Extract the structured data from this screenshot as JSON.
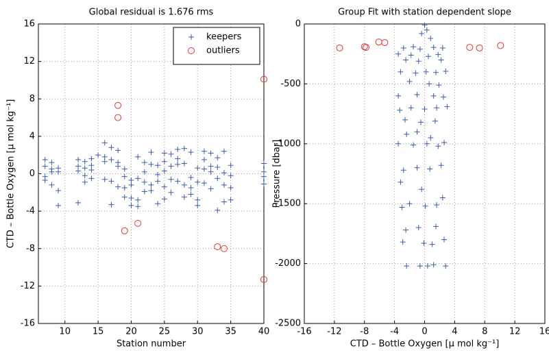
{
  "chart_data": [
    {
      "type": "scatter",
      "title": "Global residual is 1.676 rms",
      "x_label": "Station number",
      "y_label": "CTD – Bottle Oxygen [μ mol kg⁻¹]",
      "xlim": [
        6,
        40
      ],
      "xticks": [
        10,
        15,
        20,
        25,
        30,
        35,
        40
      ],
      "ylim": [
        -16,
        16
      ],
      "yticks": [
        -16,
        -12,
        -8,
        -4,
        0,
        4,
        8,
        12,
        16
      ],
      "grid": true,
      "legend": "upper right",
      "series": [
        {
          "name": "keepers",
          "color": "#3a5ba8",
          "marker": "plus",
          "x": [
            7,
            7,
            7,
            7,
            8,
            8,
            8,
            8,
            9,
            9,
            9,
            9,
            12,
            12,
            12,
            12,
            13,
            13,
            13,
            13,
            14,
            14,
            14,
            14,
            15,
            16,
            16,
            16,
            16,
            17,
            17,
            17,
            17,
            18,
            18,
            18,
            18,
            19,
            19,
            19,
            19,
            20,
            20,
            20,
            20,
            21,
            21,
            21,
            21,
            22,
            22,
            22,
            22,
            23,
            23,
            23,
            23,
            24,
            24,
            24,
            24,
            25,
            25,
            25,
            25,
            25,
            26,
            26,
            26,
            26,
            27,
            27,
            27,
            27,
            28,
            28,
            28,
            28,
            29,
            29,
            29,
            29,
            30,
            30,
            30,
            30,
            31,
            31,
            31,
            31,
            32,
            32,
            32,
            32,
            33,
            33,
            33,
            33,
            34,
            34,
            34,
            34,
            35,
            35,
            35,
            35,
            40,
            40,
            40,
            40
          ],
          "values": [
            1.5,
            0.8,
            -0.3,
            -0.7,
            1.2,
            0.5,
            -1.2,
            0.2,
            0.6,
            0.2,
            -1.8,
            -3.4,
            1.5,
            0.8,
            0.3,
            -3.1,
            1.3,
            0.6,
            -0.2,
            -0.9,
            1.6,
            0.9,
            0.4,
            -0.5,
            2,
            3.3,
            1.8,
            1.3,
            -0.6,
            2.8,
            1.5,
            -0.8,
            -3.3,
            2.5,
            1.2,
            0.8,
            -1.4,
            0.5,
            -0.3,
            -1.5,
            -2.5,
            -0.7,
            -1.2,
            -2.6,
            -3.4,
            1.8,
            -0.5,
            -2.8,
            -3.5,
            1.2,
            0.2,
            -0.9,
            -1.9,
            2.3,
            1.0,
            -1.2,
            -1.8,
            0.9,
            -0.1,
            -0.8,
            -3.2,
            2.2,
            1.3,
            0.3,
            -1.4,
            -2.7,
            2.1,
            0.8,
            -0.6,
            -2.0,
            2.6,
            1.6,
            1.0,
            -0.8,
            2.7,
            1.1,
            -1.2,
            -2.5,
            2.3,
            -0.4,
            -1.5,
            -2.2,
            0.6,
            -0.9,
            -2.8,
            -3.4,
            2.4,
            1.5,
            0.5,
            -1.0,
            2.2,
            0.8,
            0.2,
            -1.6,
            1.7,
            0.7,
            -0.5,
            -3.9,
            2.4,
            0.1,
            -1.2,
            -3.0,
            0.9,
            -0.2,
            -1.5,
            -2.8,
            1.1,
            0.2,
            -0.3,
            -1.1
          ]
        },
        {
          "name": "outliers",
          "color": "#e8312a",
          "marker": "circle",
          "x": [
            18,
            18,
            19,
            21,
            33,
            34,
            40,
            40
          ],
          "values": [
            7.3,
            6.0,
            -6.1,
            -5.3,
            -7.8,
            -8.0,
            10.1,
            -11.3
          ]
        }
      ]
    },
    {
      "type": "scatter",
      "title": "Group Fit with station dependent slope",
      "x_label": "CTD – Bottle Oxygen [μ mol kg⁻¹]",
      "y_label": "Pressure [dbar]",
      "xlim": [
        -16,
        16
      ],
      "xticks": [
        -16,
        -12,
        -8,
        -4,
        0,
        4,
        8,
        12,
        16
      ],
      "ylim": [
        -2500,
        0
      ],
      "yticks": [
        -2500,
        -2000,
        -1500,
        -1000,
        -500,
        0
      ],
      "grid": true,
      "series": [
        {
          "color": "#3a5ba8",
          "marker": "plus",
          "x": [
            0,
            0.3,
            -0.4,
            0.8,
            -1.5,
            -2.8,
            -0.6,
            1.2,
            2.4,
            -3.5,
            -1.8,
            0.5,
            1.8,
            -2.5,
            -0.8,
            2.2,
            -3.2,
            -1.2,
            0.2,
            1.5,
            2.8,
            -2.0,
            0.6,
            1.9,
            -3.5,
            -1.0,
            1.2,
            2.5,
            -3.3,
            -1.8,
            0,
            1.6,
            3.0,
            -2.6,
            -0.5,
            1.4,
            -2.4,
            -1.0,
            0.8,
            -3.5,
            -1.5,
            0.3,
            1.8,
            2.6,
            -2.8,
            -1.0,
            0.7,
            2.2,
            -3.2,
            -0.4,
            -2.0,
            0.1,
            1.6,
            -3.0,
            2.4,
            -2.5,
            -0.8,
            1.5,
            -2.9,
            -0.1,
            1.0,
            2.6,
            -2.4,
            -0.6,
            0.4,
            1.2,
            2.8
          ],
          "values": [
            -10,
            -50,
            -80,
            -120,
            -190,
            -200,
            -210,
            -195,
            -200,
            -250,
            -260,
            -270,
            -255,
            -300,
            -310,
            -300,
            -400,
            -410,
            -400,
            -405,
            -395,
            -480,
            -500,
            -510,
            -600,
            -590,
            -600,
            -610,
            -720,
            -700,
            -710,
            -700,
            -690,
            -800,
            -820,
            -810,
            -920,
            -900,
            -950,
            -1000,
            -1010,
            -1000,
            -1020,
            -990,
            -1220,
            -1200,
            -1210,
            -1180,
            -1320,
            -1380,
            -1500,
            -1520,
            -1510,
            -1530,
            -1450,
            -1720,
            -1700,
            -1690,
            -1820,
            -1830,
            -1840,
            -1800,
            -2020,
            -2020,
            -2020,
            -2010,
            -2020
          ]
        },
        {
          "color": "#e8312a",
          "marker": "circle",
          "x": [
            -11.3,
            -7.8,
            -8.0,
            -6.1,
            -5.3,
            6.0,
            7.3,
            10.1
          ],
          "values": [
            -200,
            -195,
            -190,
            -150,
            -155,
            -195,
            -200,
            -180
          ]
        }
      ]
    }
  ]
}
